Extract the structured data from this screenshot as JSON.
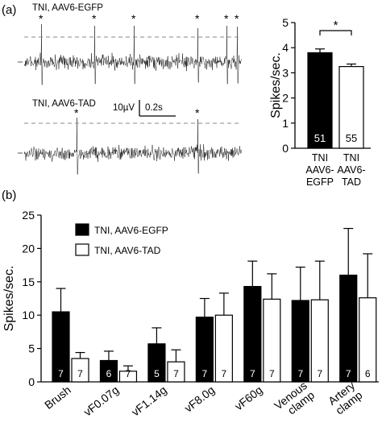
{
  "figure": {
    "panel_a_label": "(a)",
    "panel_b_label": "(b)",
    "trace_top_label": "TNI, AAV6-EGFP",
    "trace_bottom_label": "TNI, AAV6-TAD",
    "scale_bar_y_label": "10µV",
    "scale_bar_x_label": "0.2s",
    "spike_marker": "*",
    "significance_marker": "*"
  },
  "chart_data": [
    {
      "type": "bar",
      "panel": "a",
      "title": "",
      "xlabel": "",
      "ylabel": "Spikes/sec.",
      "ylim": [
        0,
        5
      ],
      "yticks": [
        0,
        1,
        2,
        3,
        4,
        5
      ],
      "categories": [
        [
          "TNI",
          "AAV6-",
          "EGFP"
        ],
        [
          "TNI",
          "AAV6-",
          "TAD"
        ]
      ],
      "values": [
        3.8,
        3.25
      ],
      "errors": [
        0.15,
        0.1
      ],
      "n_labels": [
        "51",
        "55"
      ],
      "fills": [
        "#000000",
        "#ffffff"
      ],
      "n_label_colors": [
        "#ffffff",
        "#000000"
      ],
      "grid": false
    },
    {
      "type": "bar",
      "panel": "b",
      "title": "",
      "xlabel": "",
      "ylabel": "Spikes/sec.",
      "ylim": [
        0,
        25
      ],
      "yticks": [
        0,
        5,
        10,
        15,
        20,
        25
      ],
      "categories": [
        "Brush",
        "vF0.07g",
        "vF1.14g",
        "vF8.0g",
        "vF60g",
        "Venous clamp",
        "Artery clamp"
      ],
      "series": [
        {
          "name": "TNI, AAV6-EGFP",
          "fill": "#000000",
          "label_color": "#ffffff",
          "values": [
            10.5,
            3.2,
            5.7,
            9.7,
            14.3,
            12.2,
            16.0
          ],
          "errors": [
            3.5,
            1.4,
            2.4,
            2.8,
            3.8,
            5.0,
            7.0
          ],
          "n_labels": [
            "7",
            "6",
            "5",
            "7",
            "7",
            "7",
            "7"
          ]
        },
        {
          "name": "TNI, AAV6-TAD",
          "fill": "#ffffff",
          "label_color": "#000000",
          "values": [
            3.5,
            1.6,
            3.0,
            10.0,
            12.4,
            12.3,
            12.6
          ],
          "errors": [
            0.9,
            0.8,
            1.8,
            3.3,
            3.8,
            5.8,
            6.6
          ],
          "n_labels": [
            "7",
            "7",
            "7",
            "7",
            "7",
            "7",
            "6"
          ]
        }
      ],
      "legend": "top-left",
      "grid": false
    }
  ]
}
